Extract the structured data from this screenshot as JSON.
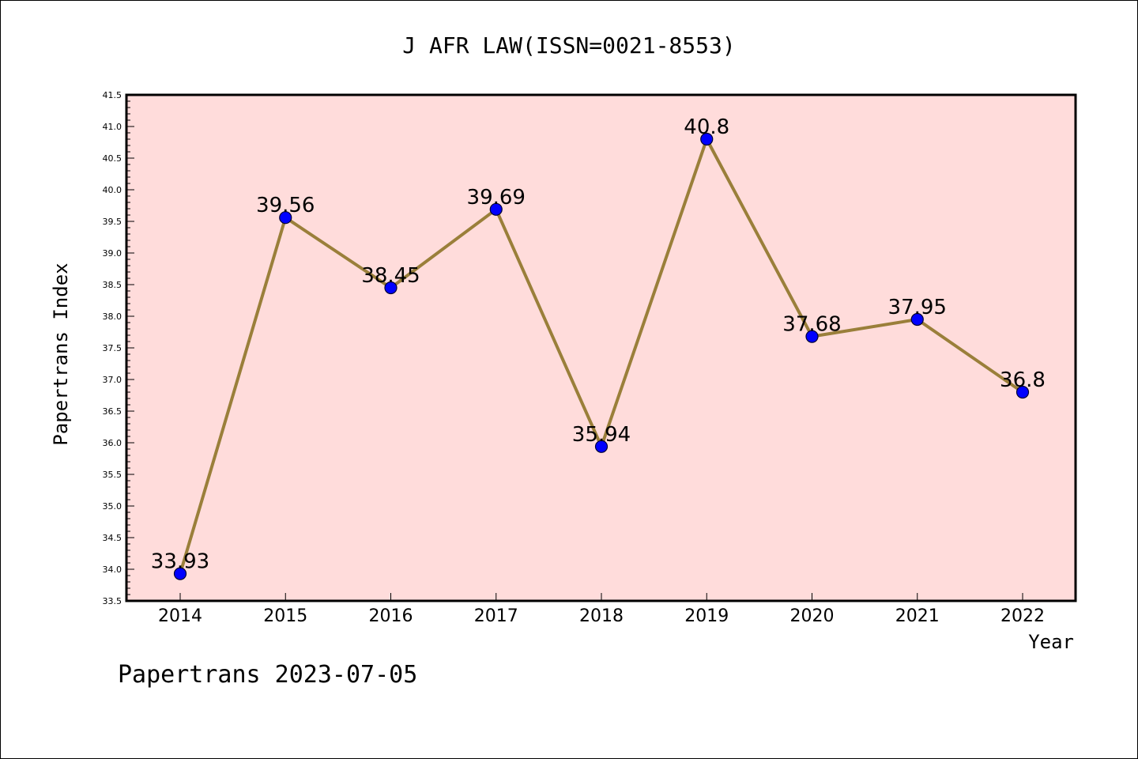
{
  "chart_data": {
    "type": "line",
    "title": "J AFR LAW(ISSN=0021-8553)",
    "xlabel": "Year",
    "ylabel": "Papertrans Index",
    "footer": "Papertrans 2023-07-05",
    "categories": [
      "2014",
      "2015",
      "2016",
      "2017",
      "2018",
      "2019",
      "2020",
      "2021",
      "2022"
    ],
    "values": [
      33.93,
      39.56,
      38.45,
      39.69,
      35.94,
      40.8,
      37.68,
      37.95,
      36.8
    ],
    "data_labels": [
      "33.93",
      "39.56",
      "38.45",
      "39.69",
      "35.94",
      "40.8",
      "37.68",
      "37.95",
      "36.8"
    ],
    "ylim": [
      33.5,
      41.5
    ],
    "yticks": [
      "33.5",
      "34.0",
      "34.5",
      "35.0",
      "35.5",
      "36.0",
      "36.5",
      "37.0",
      "37.5",
      "38.0",
      "38.5",
      "39.0",
      "39.5",
      "40.0",
      "40.5",
      "41.0",
      "41.5"
    ],
    "grid": false,
    "legend": "none",
    "colors": {
      "line": "#9a7f3a",
      "marker": "#0000ff",
      "plot_background": "#ffdcdb",
      "axes": "#000000"
    }
  }
}
